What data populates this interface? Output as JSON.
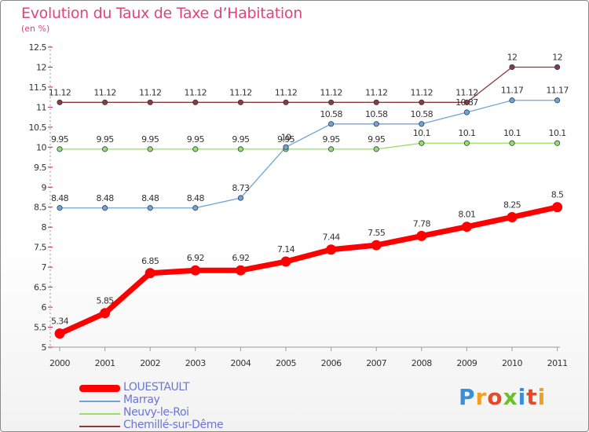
{
  "chart_data": {
    "type": "line",
    "title": "Evolution du Taux de Taxe d’Habitation",
    "subtitle": "(en %)",
    "categories": [
      "2000",
      "2001",
      "2002",
      "2003",
      "2004",
      "2005",
      "2006",
      "2007",
      "2008",
      "2009",
      "2010",
      "2011"
    ],
    "ylim": [
      5,
      12.5
    ],
    "yticks": [
      "5",
      "5.5",
      "6",
      "6.5",
      "7",
      "7.5",
      "8",
      "8.5",
      "9",
      "9.5",
      "10",
      "10.5",
      "11",
      "11.5",
      "12",
      "12.5"
    ],
    "grid": false,
    "legend_position": "bottom-left",
    "series": [
      {
        "name": "LOUESTAULT",
        "color": "#ff0000",
        "values": [
          5.34,
          5.85,
          6.85,
          6.92,
          6.92,
          7.14,
          7.44,
          7.55,
          7.78,
          8.01,
          8.25,
          8.5
        ],
        "labels": [
          "5.34",
          "5.85",
          "6.85",
          "6.92",
          "6.92",
          "7.14",
          "7.44",
          "7.55",
          "7.78",
          "8.01",
          "8.25",
          "8.5"
        ]
      },
      {
        "name": "Marray",
        "color": "#6fa4d4",
        "values": [
          8.48,
          8.48,
          8.48,
          8.48,
          8.73,
          10,
          10.58,
          10.58,
          10.58,
          10.87,
          11.17,
          11.17
        ],
        "labels": [
          "8.48",
          "8.48",
          "8.48",
          "8.48",
          "8.73",
          "10",
          "10.58",
          "10.58",
          "10.58",
          "10.87",
          "11.17",
          "11.17"
        ]
      },
      {
        "name": "Neuvy-le-Roi",
        "color": "#99dd66",
        "values": [
          9.95,
          9.95,
          9.95,
          9.95,
          9.95,
          9.95,
          9.95,
          9.95,
          10.1,
          10.1,
          10.1,
          10.1
        ],
        "labels": [
          "9.95",
          "9.95",
          "9.95",
          "9.95",
          "9.95",
          "9.95",
          "9.95",
          "9.95",
          "10.1",
          "10.1",
          "10.1",
          "10.1"
        ]
      },
      {
        "name": "Chemillé-sur-Dême",
        "color": "#8a3a3a",
        "values": [
          11.12,
          11.12,
          11.12,
          11.12,
          11.12,
          11.12,
          11.12,
          11.12,
          11.12,
          11.12,
          12,
          12
        ],
        "labels": [
          "11.12",
          "11.12",
          "11.12",
          "11.12",
          "11.12",
          "11.12",
          "11.12",
          "11.12",
          "11.12",
          "11.12",
          "12",
          "12"
        ]
      }
    ]
  },
  "logo": {
    "text": "Proxiti"
  }
}
